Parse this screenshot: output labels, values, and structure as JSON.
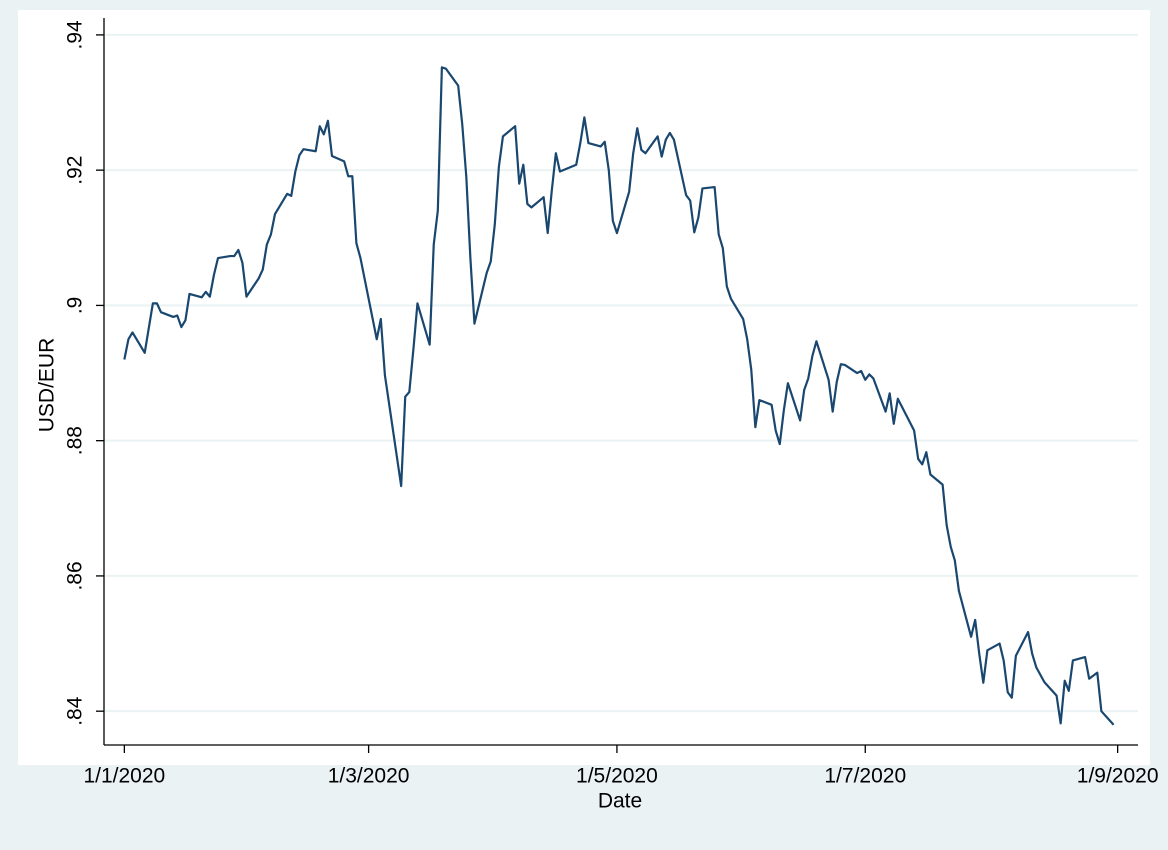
{
  "chart_data": {
    "type": "line",
    "x_label": "Date",
    "y_label": "USD/EUR",
    "x": [
      "2020-01-01",
      "2020-01-02",
      "2020-01-03",
      "2020-01-06",
      "2020-01-08",
      "2020-01-09",
      "2020-01-10",
      "2020-01-13",
      "2020-01-14",
      "2020-01-15",
      "2020-01-16",
      "2020-01-17",
      "2020-01-20",
      "2020-01-21",
      "2020-01-22",
      "2020-01-23",
      "2020-01-24",
      "2020-01-27",
      "2020-01-28",
      "2020-01-29",
      "2020-01-30",
      "2020-01-31",
      "2020-02-03",
      "2020-02-04",
      "2020-02-05",
      "2020-02-06",
      "2020-02-07",
      "2020-02-10",
      "2020-02-11",
      "2020-02-12",
      "2020-02-13",
      "2020-02-14",
      "2020-02-17",
      "2020-02-18",
      "2020-02-19",
      "2020-02-20",
      "2020-02-21",
      "2020-02-24",
      "2020-02-25",
      "2020-02-26",
      "2020-02-27",
      "2020-02-28",
      "2020-03-03",
      "2020-03-04",
      "2020-03-05",
      "2020-03-09",
      "2020-03-10",
      "2020-03-11",
      "2020-03-12",
      "2020-03-13",
      "2020-03-16",
      "2020-03-17",
      "2020-03-18",
      "2020-03-19",
      "2020-03-20",
      "2020-03-23",
      "2020-03-24",
      "2020-03-25",
      "2020-03-26",
      "2020-03-27",
      "2020-03-30",
      "2020-03-31",
      "2020-04-01",
      "2020-04-02",
      "2020-04-03",
      "2020-04-06",
      "2020-04-07",
      "2020-04-08",
      "2020-04-09",
      "2020-04-10",
      "2020-04-13",
      "2020-04-14",
      "2020-04-15",
      "2020-04-16",
      "2020-04-17",
      "2020-04-21",
      "2020-04-22",
      "2020-04-23",
      "2020-04-24",
      "2020-04-27",
      "2020-04-28",
      "2020-04-29",
      "2020-04-30",
      "2020-05-01",
      "2020-05-04",
      "2020-05-05",
      "2020-05-06",
      "2020-05-07",
      "2020-05-08",
      "2020-05-11",
      "2020-05-12",
      "2020-05-13",
      "2020-05-14",
      "2020-05-15",
      "2020-05-18",
      "2020-05-19",
      "2020-05-20",
      "2020-05-21",
      "2020-05-22",
      "2020-05-25",
      "2020-05-26",
      "2020-05-27",
      "2020-05-28",
      "2020-05-29",
      "2020-06-01",
      "2020-06-02",
      "2020-06-03",
      "2020-06-04",
      "2020-06-05",
      "2020-06-08",
      "2020-06-09",
      "2020-06-10",
      "2020-06-11",
      "2020-06-12",
      "2020-06-15",
      "2020-06-16",
      "2020-06-17",
      "2020-06-18",
      "2020-06-19",
      "2020-06-22",
      "2020-06-23",
      "2020-06-24",
      "2020-06-25",
      "2020-06-26",
      "2020-06-29",
      "2020-06-30",
      "2020-07-01",
      "2020-07-02",
      "2020-07-03",
      "2020-07-06",
      "2020-07-07",
      "2020-07-08",
      "2020-07-09",
      "2020-07-13",
      "2020-07-14",
      "2020-07-15",
      "2020-07-16",
      "2020-07-17",
      "2020-07-20",
      "2020-07-21",
      "2020-07-22",
      "2020-07-23",
      "2020-07-24",
      "2020-07-27",
      "2020-07-28",
      "2020-07-29",
      "2020-07-30",
      "2020-07-31",
      "2020-08-03",
      "2020-08-04",
      "2020-08-05",
      "2020-08-06",
      "2020-08-07",
      "2020-08-10",
      "2020-08-11",
      "2020-08-12",
      "2020-08-14",
      "2020-08-17",
      "2020-08-18",
      "2020-08-19",
      "2020-08-20",
      "2020-08-21",
      "2020-08-24",
      "2020-08-25",
      "2020-08-27",
      "2020-08-28",
      "2020-08-31"
    ],
    "series": [
      {
        "color": "#1a476f",
        "values": [
          0.892,
          0.895,
          0.896,
          0.893,
          0.9003,
          0.9003,
          0.899,
          0.8983,
          0.8985,
          0.8968,
          0.8978,
          0.9017,
          0.9012,
          0.902,
          0.9013,
          0.9045,
          0.907,
          0.9073,
          0.9073,
          0.9082,
          0.9063,
          0.9013,
          0.904,
          0.9053,
          0.909,
          0.9105,
          0.9135,
          0.9165,
          0.9162,
          0.9198,
          0.9222,
          0.9231,
          0.9228,
          0.9265,
          0.9253,
          0.9273,
          0.9221,
          0.9213,
          0.9191,
          0.9191,
          0.9092,
          0.907,
          0.895,
          0.898,
          0.8897,
          0.8733,
          0.8865,
          0.8872,
          0.8935,
          0.9003,
          0.8942,
          0.909,
          0.914,
          0.9352,
          0.935,
          0.9325,
          0.9268,
          0.919,
          0.907,
          0.8973,
          0.9048,
          0.9065,
          0.912,
          0.9205,
          0.925,
          0.9265,
          0.918,
          0.9208,
          0.915,
          0.9145,
          0.916,
          0.9107,
          0.917,
          0.9225,
          0.9198,
          0.9208,
          0.924,
          0.9278,
          0.924,
          0.9235,
          0.9242,
          0.92,
          0.9125,
          0.9107,
          0.9168,
          0.9225,
          0.9262,
          0.923,
          0.9225,
          0.925,
          0.922,
          0.9245,
          0.9255,
          0.9245,
          0.9163,
          0.9155,
          0.9108,
          0.913,
          0.9173,
          0.9175,
          0.9105,
          0.9085,
          0.9028,
          0.901,
          0.898,
          0.895,
          0.8905,
          0.882,
          0.886,
          0.8853,
          0.8815,
          0.8795,
          0.8845,
          0.8885,
          0.883,
          0.8875,
          0.8892,
          0.8925,
          0.8947,
          0.889,
          0.8843,
          0.8887,
          0.8913,
          0.8912,
          0.89,
          0.8903,
          0.889,
          0.8898,
          0.8892,
          0.8843,
          0.887,
          0.8825,
          0.8862,
          0.8815,
          0.8773,
          0.8765,
          0.8783,
          0.875,
          0.8735,
          0.8675,
          0.8643,
          0.8623,
          0.8578,
          0.851,
          0.8535,
          0.8485,
          0.8442,
          0.849,
          0.85,
          0.8475,
          0.8428,
          0.842,
          0.8482,
          0.8517,
          0.8485,
          0.8465,
          0.8443,
          0.8423,
          0.8382,
          0.8445,
          0.843,
          0.8475,
          0.848,
          0.8448,
          0.8457,
          0.84,
          0.838
        ]
      }
    ],
    "xlim": [
      "2019-12-27",
      "2020-09-06"
    ],
    "xticks": [
      {
        "value": "2020-01-01",
        "label": "1/1/2020"
      },
      {
        "value": "2020-03-01",
        "label": "1/3/2020"
      },
      {
        "value": "2020-05-01",
        "label": "1/5/2020"
      },
      {
        "value": "2020-07-01",
        "label": "1/7/2020"
      },
      {
        "value": "2020-09-01",
        "label": "1/9/2020"
      }
    ],
    "ylim": [
      0.835,
      0.9425
    ],
    "yticks": [
      {
        "value": 0.84,
        "label": ".84"
      },
      {
        "value": 0.86,
        "label": ".86"
      },
      {
        "value": 0.88,
        "label": ".88"
      },
      {
        "value": 0.9,
        "label": ".9"
      },
      {
        "value": 0.92,
        "label": ".92"
      },
      {
        "value": 0.94,
        "label": ".94"
      }
    ],
    "grid": true
  }
}
